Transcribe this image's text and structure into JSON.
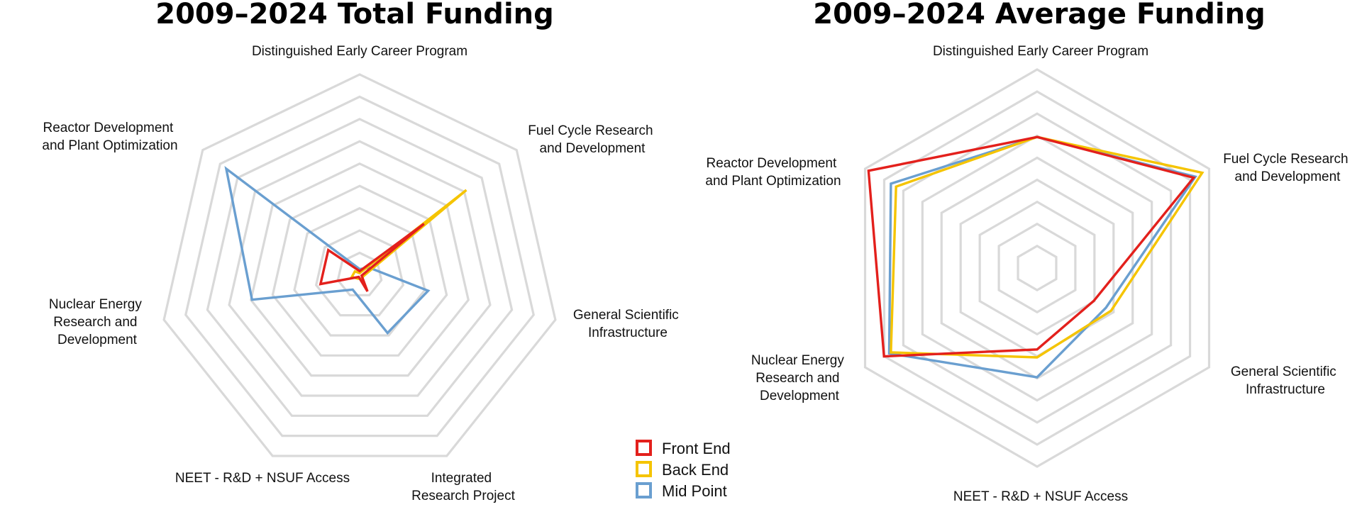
{
  "chart_data": [
    {
      "type": "radar",
      "title": "2009–2024 Total Funding",
      "axes": [
        "Distinguished Early Career Program",
        "Fuel Cycle Research and Development",
        "General Scientific Infrastructure",
        "Integrated Research Project",
        "NEET - R&D + NSUF Access",
        "Nuclear Energy Research and Development",
        "Reactor Development and Plant Optimization"
      ],
      "grid_levels": 9,
      "series": [
        {
          "name": "Mid Point",
          "color": "#6a9fd0",
          "values": [
            0.03,
            0.06,
            0.35,
            0.32,
            0.08,
            0.55,
            0.85
          ]
        },
        {
          "name": "Back End",
          "color": "#f5c400",
          "values": [
            0.01,
            0.68,
            0.02,
            0.02,
            0.02,
            0.04,
            0.03
          ]
        },
        {
          "name": "Front End",
          "color": "#e3201c",
          "values": [
            0.02,
            0.41,
            0.01,
            0.09,
            0.01,
            0.2,
            0.2
          ]
        }
      ]
    },
    {
      "type": "radar",
      "title": "2009–2024 Average Funding",
      "axes": [
        "Distinguished Early Career Program",
        "Fuel Cycle Research and Development",
        "General Scientific Infrastructure",
        "NEET - R&D + NSUF Access",
        "Nuclear Energy Research and Development",
        "Reactor Development and Plant Optimization"
      ],
      "grid_levels": 9,
      "series": [
        {
          "name": "Mid Point",
          "color": "#6a9fd0",
          "values": [
            0.66,
            0.92,
            0.4,
            0.55,
            0.86,
            0.85
          ]
        },
        {
          "name": "Back End",
          "color": "#f5c400",
          "values": [
            0.66,
            0.96,
            0.43,
            0.45,
            0.85,
            0.82
          ]
        },
        {
          "name": "Front End",
          "color": "#e3201c",
          "values": [
            0.66,
            0.91,
            0.33,
            0.41,
            0.89,
            0.98
          ]
        }
      ]
    }
  ],
  "legend": [
    {
      "label": "Front End",
      "color": "#e3201c"
    },
    {
      "label": "Back End",
      "color": "#f5c400"
    },
    {
      "label": "Mid Point",
      "color": "#6a9fd0"
    }
  ]
}
